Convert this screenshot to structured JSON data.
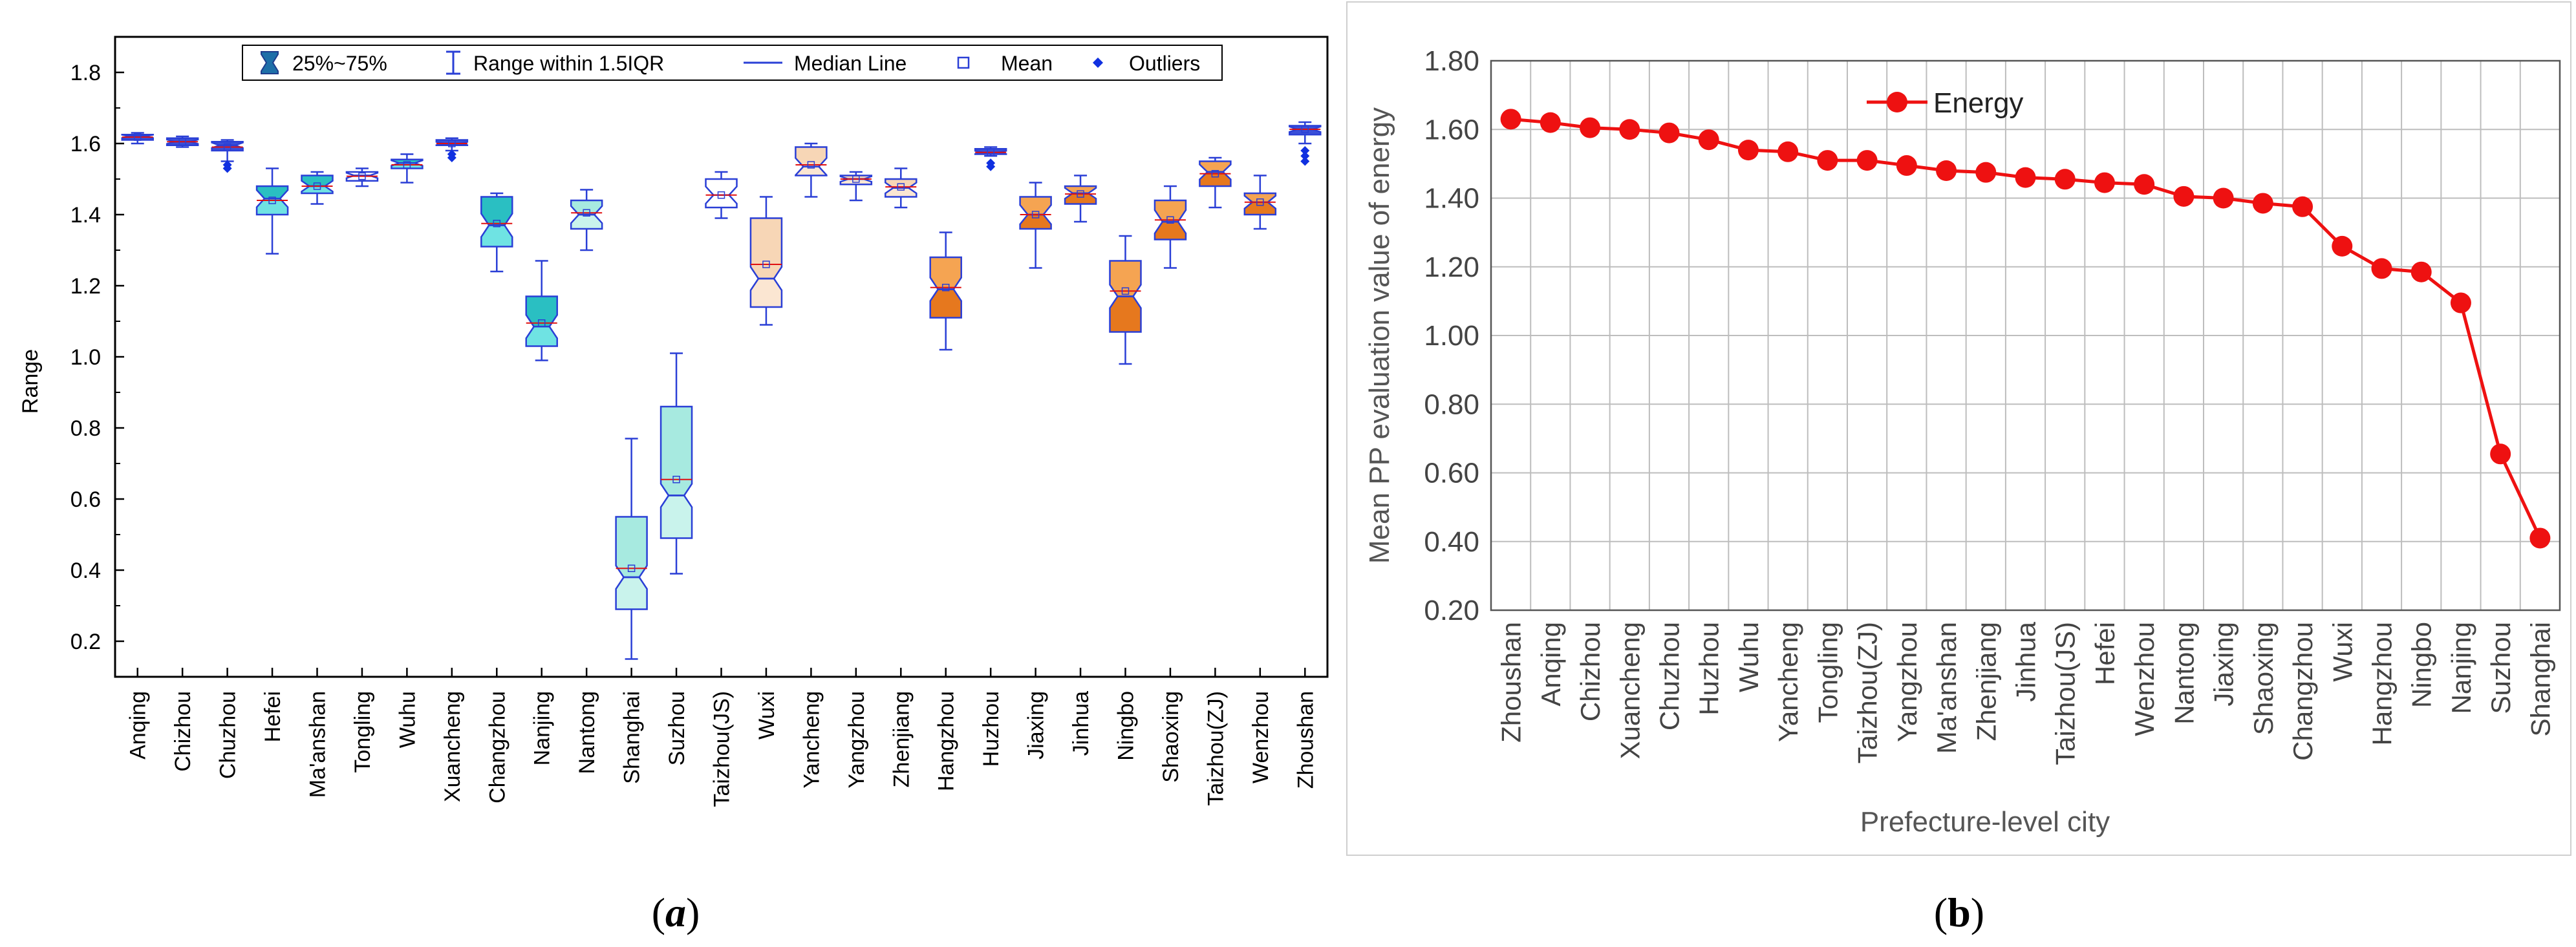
{
  "panel_a": {
    "caption_open": "(",
    "caption_letter": "a",
    "caption_close": ")",
    "legend": {
      "box": "25%~75%",
      "whisker": "Range within 1.5IQR",
      "median": "Median Line",
      "mean": "Mean",
      "outliers": "Outliers"
    }
  },
  "panel_b": {
    "caption_open": "(",
    "caption_letter": "b",
    "caption_close": ")"
  },
  "colors": {
    "box_blue": "#2A3FD6",
    "median_red": "#E01010",
    "energy_red": "#EE1111",
    "teal": "#3CC8C8",
    "orange": "#F08C3C",
    "grid": "#BDBDBD"
  },
  "chart_data": [
    {
      "type": "box",
      "title": "",
      "xlabel": "",
      "ylabel": "Range",
      "ylim": [
        0.1,
        1.9
      ],
      "yticks": [
        "0.2",
        "0.4",
        "0.6",
        "0.8",
        "1.0",
        "1.2",
        "1.4",
        "1.6",
        "1.8"
      ],
      "ytick_values": [
        0.2,
        0.4,
        0.6,
        0.8,
        1.0,
        1.2,
        1.4,
        1.6,
        1.8
      ],
      "categories": [
        "Anqing",
        "Chizhou",
        "Chuzhou",
        "Hefei",
        "Ma'anshan",
        "Tongling",
        "Wuhu",
        "Xuancheng",
        "Changzhou",
        "Nanjing",
        "Nantong",
        "Shanghai",
        "Suzhou",
        "Taizhou(JS)",
        "Wuxi",
        "Yancheng",
        "Yangzhou",
        "Zhenjiang",
        "Hangzhou",
        "Huzhou",
        "Jiaxing",
        "Jinhua",
        "Ningbo",
        "Shaoxing",
        "Taizhou(ZJ)",
        "Wenzhou",
        "Zhoushan"
      ],
      "boxes": [
        {
          "min": 1.6,
          "q1": 1.61,
          "median": 1.62,
          "q3": 1.625,
          "max": 1.63,
          "mean": 1.618,
          "outliers": [],
          "fill": "blue"
        },
        {
          "min": 1.59,
          "q1": 1.595,
          "median": 1.605,
          "q3": 1.615,
          "max": 1.62,
          "mean": 1.605,
          "outliers": [],
          "fill": "blue"
        },
        {
          "min": 1.55,
          "q1": 1.58,
          "median": 1.595,
          "q3": 1.605,
          "max": 1.61,
          "mean": 1.59,
          "outliers": [
            1.54,
            1.53
          ],
          "fill": "blue"
        },
        {
          "min": 1.29,
          "q1": 1.4,
          "median": 1.445,
          "q3": 1.48,
          "max": 1.53,
          "mean": 1.44,
          "outliers": [],
          "fill": "teal"
        },
        {
          "min": 1.43,
          "q1": 1.46,
          "median": 1.48,
          "q3": 1.51,
          "max": 1.52,
          "mean": 1.48,
          "outliers": [],
          "fill": "teal"
        },
        {
          "min": 1.48,
          "q1": 1.495,
          "median": 1.51,
          "q3": 1.52,
          "max": 1.53,
          "mean": 1.508,
          "outliers": [],
          "fill": "none"
        },
        {
          "min": 1.49,
          "q1": 1.53,
          "median": 1.545,
          "q3": 1.555,
          "max": 1.57,
          "mean": 1.54,
          "outliers": [],
          "fill": "teal"
        },
        {
          "min": 1.58,
          "q1": 1.595,
          "median": 1.6,
          "q3": 1.61,
          "max": 1.615,
          "mean": 1.6,
          "outliers": [
            1.57,
            1.56
          ],
          "fill": "blue"
        },
        {
          "min": 1.24,
          "q1": 1.31,
          "median": 1.37,
          "q3": 1.45,
          "max": 1.46,
          "mean": 1.375,
          "outliers": [],
          "fill": "teal"
        },
        {
          "min": 0.99,
          "q1": 1.03,
          "median": 1.085,
          "q3": 1.17,
          "max": 1.27,
          "mean": 1.095,
          "outliers": [],
          "fill": "teal"
        },
        {
          "min": 1.3,
          "q1": 1.36,
          "median": 1.4,
          "q3": 1.44,
          "max": 1.47,
          "mean": 1.405,
          "outliers": [],
          "fill": "lightteal"
        },
        {
          "min": 0.15,
          "q1": 0.29,
          "median": 0.38,
          "q3": 0.55,
          "max": 0.77,
          "mean": 0.405,
          "outliers": [],
          "fill": "lightteal"
        },
        {
          "min": 0.39,
          "q1": 0.49,
          "median": 0.61,
          "q3": 0.86,
          "max": 1.01,
          "mean": 0.655,
          "outliers": [],
          "fill": "lightteal"
        },
        {
          "min": 1.39,
          "q1": 1.42,
          "median": 1.455,
          "q3": 1.5,
          "max": 1.52,
          "mean": 1.455,
          "outliers": [],
          "fill": "none"
        },
        {
          "min": 1.09,
          "q1": 1.14,
          "median": 1.22,
          "q3": 1.39,
          "max": 1.45,
          "mean": 1.26,
          "outliers": [],
          "fill": "peach"
        },
        {
          "min": 1.45,
          "q1": 1.51,
          "median": 1.535,
          "q3": 1.59,
          "max": 1.6,
          "mean": 1.54,
          "outliers": [],
          "fill": "peach"
        },
        {
          "min": 1.44,
          "q1": 1.485,
          "median": 1.5,
          "q3": 1.51,
          "max": 1.52,
          "mean": 1.5,
          "outliers": [],
          "fill": "peach"
        },
        {
          "min": 1.42,
          "q1": 1.45,
          "median": 1.475,
          "q3": 1.5,
          "max": 1.53,
          "mean": 1.478,
          "outliers": [],
          "fill": "peach"
        },
        {
          "min": 1.02,
          "q1": 1.11,
          "median": 1.19,
          "q3": 1.28,
          "max": 1.35,
          "mean": 1.195,
          "outliers": [],
          "fill": "orange"
        },
        {
          "min": 1.565,
          "q1": 1.57,
          "median": 1.575,
          "q3": 1.585,
          "max": 1.59,
          "mean": 1.575,
          "outliers": [
            1.545,
            1.535
          ],
          "fill": "blue"
        },
        {
          "min": 1.25,
          "q1": 1.36,
          "median": 1.4,
          "q3": 1.45,
          "max": 1.49,
          "mean": 1.4,
          "outliers": [],
          "fill": "orange"
        },
        {
          "min": 1.38,
          "q1": 1.43,
          "median": 1.46,
          "q3": 1.48,
          "max": 1.51,
          "mean": 1.458,
          "outliers": [],
          "fill": "orange"
        },
        {
          "min": 0.98,
          "q1": 1.07,
          "median": 1.17,
          "q3": 1.27,
          "max": 1.34,
          "mean": 1.185,
          "outliers": [],
          "fill": "orange"
        },
        {
          "min": 1.25,
          "q1": 1.33,
          "median": 1.38,
          "q3": 1.44,
          "max": 1.48,
          "mean": 1.385,
          "outliers": [],
          "fill": "orange"
        },
        {
          "min": 1.42,
          "q1": 1.48,
          "median": 1.52,
          "q3": 1.55,
          "max": 1.56,
          "mean": 1.515,
          "outliers": [],
          "fill": "orange"
        },
        {
          "min": 1.36,
          "q1": 1.4,
          "median": 1.435,
          "q3": 1.46,
          "max": 1.51,
          "mean": 1.435,
          "outliers": [],
          "fill": "orange"
        },
        {
          "min": 1.6,
          "q1": 1.625,
          "median": 1.64,
          "q3": 1.65,
          "max": 1.66,
          "mean": 1.64,
          "outliers": [
            1.58,
            1.565,
            1.55
          ],
          "fill": "blue"
        }
      ]
    },
    {
      "type": "line",
      "title": "",
      "xlabel": "Prefecture-level city",
      "ylabel": "Mean PP evaluation value of energy",
      "ylim": [
        0.2,
        1.8
      ],
      "yticks": [
        "0.20",
        "0.40",
        "0.60",
        "0.80",
        "1.00",
        "1.20",
        "1.40",
        "1.60",
        "1.80"
      ],
      "ytick_values": [
        0.2,
        0.4,
        0.6,
        0.8,
        1.0,
        1.2,
        1.4,
        1.6,
        1.8
      ],
      "legend": "top-left",
      "categories": [
        "Zhoushan",
        "Anqing",
        "Chizhou",
        "Xuancheng",
        "Chuzhou",
        "Huzhou",
        "Wuhu",
        "Yancheng",
        "Tongling",
        "Taizhou(ZJ)",
        "Yangzhou",
        "Ma'anshan",
        "Zhenjiang",
        "Jinhua",
        "Taizhou(JS)",
        "Hefei",
        "Wenzhou",
        "Nantong",
        "Jiaxing",
        "Shaoxing",
        "Changzhou",
        "Wuxi",
        "Hangzhou",
        "Ningbo",
        "Nanjing",
        "Suzhou",
        "Shanghai"
      ],
      "series": [
        {
          "name": "Energy",
          "values": [
            1.63,
            1.62,
            1.605,
            1.6,
            1.59,
            1.57,
            1.54,
            1.535,
            1.51,
            1.51,
            1.495,
            1.48,
            1.475,
            1.46,
            1.455,
            1.445,
            1.44,
            1.405,
            1.4,
            1.385,
            1.375,
            1.26,
            1.195,
            1.185,
            1.095,
            0.655,
            0.41
          ]
        }
      ]
    }
  ]
}
